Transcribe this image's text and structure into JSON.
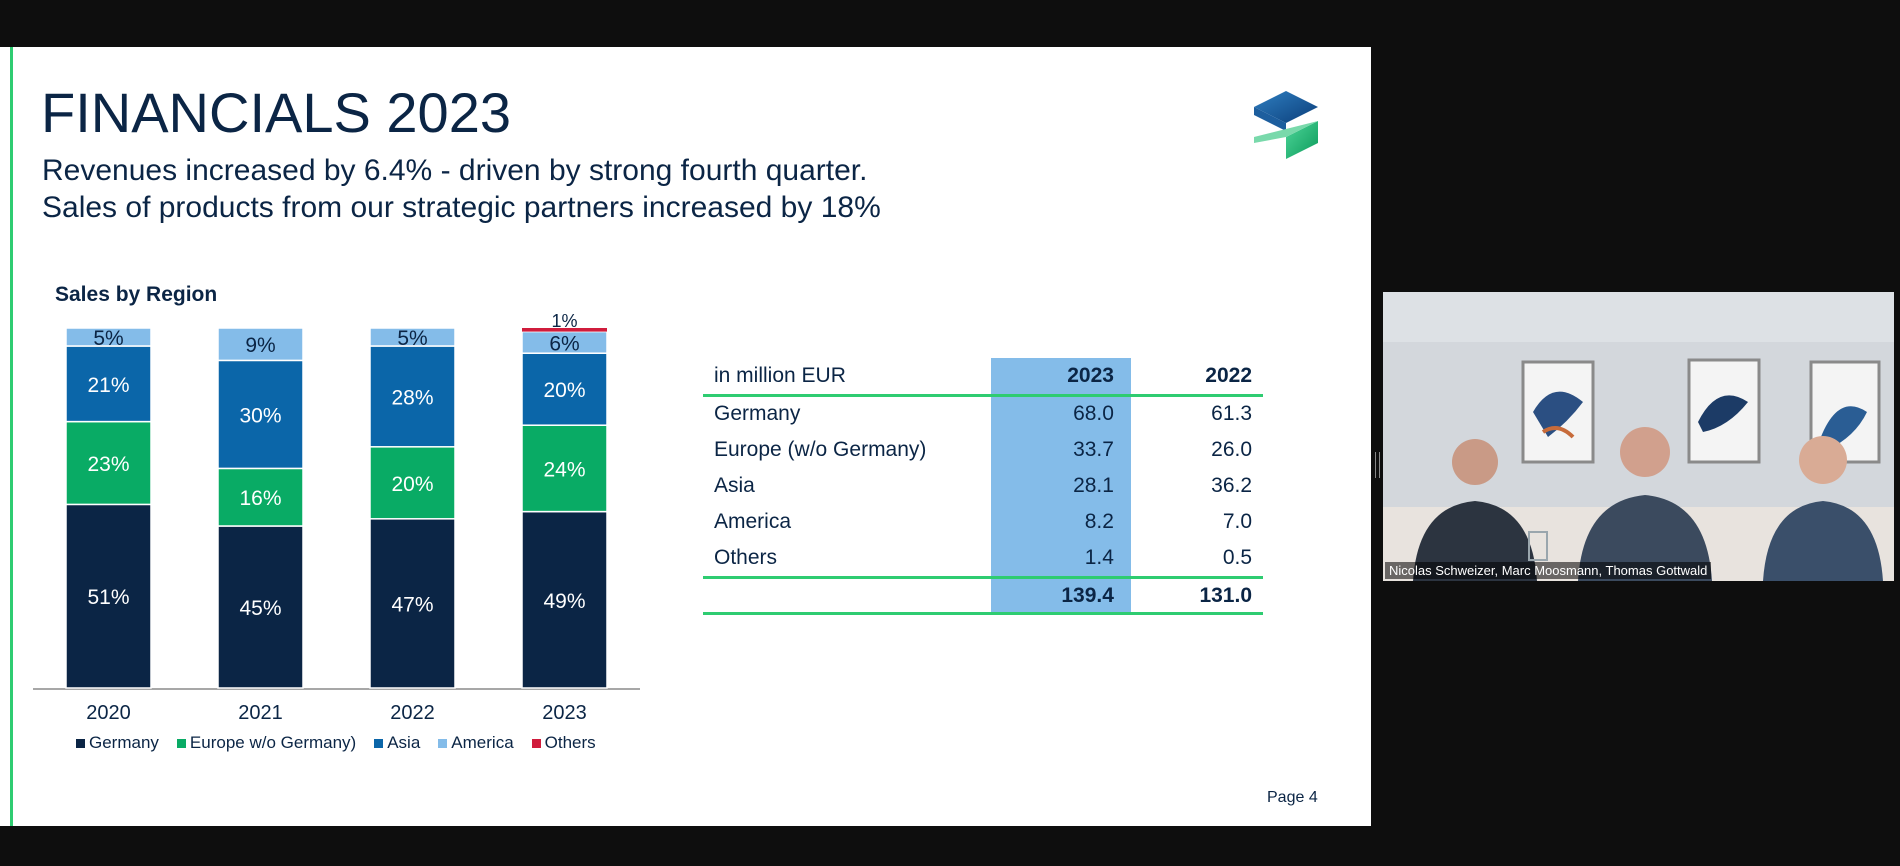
{
  "slide": {
    "title": "FINANCIALS 2023",
    "subtitle_lines": [
      "Revenues increased by 6.4% - driven by strong fourth quarter.",
      "Sales of products from our strategic partners increased by 18%"
    ],
    "page_label": "Page 4"
  },
  "chart_data": {
    "type": "bar",
    "stacked": true,
    "normalized_percent": true,
    "title": "Sales by Region",
    "categories": [
      "2020",
      "2021",
      "2022",
      "2023"
    ],
    "series": [
      {
        "name": "Germany",
        "color": "#0b2545",
        "values": [
          51,
          45,
          47,
          49
        ],
        "labels": [
          "51%",
          "45%",
          "47%",
          "49%"
        ]
      },
      {
        "name": "Europe w/o Germany)",
        "color": "#09ab65",
        "values": [
          23,
          16,
          20,
          24
        ],
        "labels": [
          "23%",
          "16%",
          "20%",
          "24%"
        ]
      },
      {
        "name": "Asia",
        "color": "#0b66a9",
        "values": [
          21,
          30,
          28,
          20
        ],
        "labels": [
          "21%",
          "30%",
          "28%",
          "20%"
        ]
      },
      {
        "name": "America",
        "color": "#84bce9",
        "values": [
          5,
          9,
          5,
          6
        ],
        "labels": [
          "5%",
          "9%",
          "5%",
          "6%"
        ]
      },
      {
        "name": "Others",
        "color": "#d01c3c",
        "values": [
          0,
          0,
          0,
          1
        ],
        "labels": [
          "",
          "",
          "",
          "1%"
        ]
      }
    ],
    "ylim": [
      0,
      100
    ],
    "legend_position": "bottom"
  },
  "table": {
    "header": {
      "label": "in million EUR",
      "col1": "2023",
      "col2": "2022"
    },
    "rows": [
      {
        "label": "Germany",
        "col1": "68.0",
        "col2": "61.3"
      },
      {
        "label": "Europe (w/o Germany)",
        "col1": "33.7",
        "col2": "26.0"
      },
      {
        "label": "Asia",
        "col1": "28.1",
        "col2": "36.2"
      },
      {
        "label": "America",
        "col1": "8.2",
        "col2": "7.0"
      },
      {
        "label": "Others",
        "col1": "1.4",
        "col2": "0.5"
      }
    ],
    "total": {
      "label": "",
      "col1": "139.4",
      "col2": "131.0"
    }
  },
  "video": {
    "caption": "Nicolas Schweizer, Marc Moosmann, Thomas Gottwald"
  },
  "colors": {
    "accent_green": "#2ecc71",
    "navy": "#0b2545",
    "highlight_blue": "#84bce9"
  }
}
